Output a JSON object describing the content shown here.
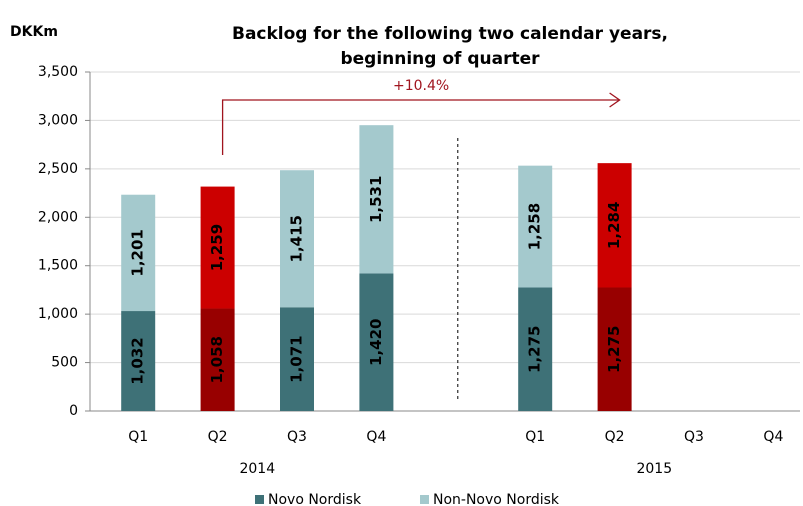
{
  "chart_data": {
    "type": "stacked_bar",
    "title": [
      "Backlog for the following  two calendar years,",
      "beginning of quarter"
    ],
    "y_axis_label": "DKKm",
    "categories": [
      "Q1",
      "Q2",
      "Q3",
      "Q4",
      null,
      "Q1",
      "Q2",
      "Q3",
      "Q4"
    ],
    "groups": [
      "2014",
      "2015"
    ],
    "series": [
      {
        "name": "Novo Nordisk",
        "color": "#3e7177",
        "highlight_color": "#980000",
        "values": [
          1032,
          1058,
          1071,
          1420,
          null,
          1275,
          1275,
          null,
          null
        ],
        "value_labels": [
          "1,032",
          "1,058",
          "1,071",
          "1,420",
          null,
          "1,275",
          "1,275",
          null,
          null
        ]
      },
      {
        "name": "Non-Novo Nordisk",
        "color": "#a4c9cd",
        "highlight_color": "#cc0000",
        "values": [
          1201,
          1259,
          1415,
          1531,
          null,
          1258,
          1284,
          null,
          null
        ],
        "value_labels": [
          "1,201",
          "1,259",
          "1,415",
          "1,531",
          null,
          "1,258",
          "1,284",
          null,
          null
        ]
      }
    ],
    "highlight_index": [
      1,
      6
    ],
    "annotation": "+10.4%",
    "annotation_color": "#a0141e",
    "ylim": [
      0,
      3500
    ],
    "yticks": [
      0,
      500,
      {
        "value": 1000,
        "label": "1,000"
      },
      {
        "value": 1500,
        "label": "1,500"
      },
      {
        "value": 2000,
        "label": "2,000"
      },
      {
        "value": 2500,
        "label": "2,500"
      },
      {
        "value": 3000,
        "label": "3,000"
      },
      {
        "value": 3500,
        "label": "3,500"
      }
    ],
    "grid": true,
    "legend": "bottom"
  }
}
